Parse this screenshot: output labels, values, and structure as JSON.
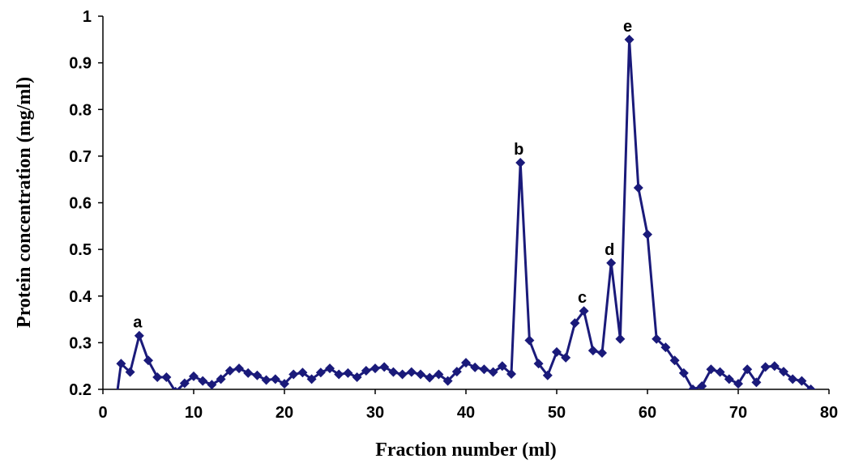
{
  "chart_data": {
    "type": "line",
    "title": "",
    "xlabel": "Fraction number (ml)",
    "ylabel": "Protein concentration (mg/ml)",
    "xlim": [
      0,
      80
    ],
    "ylim": [
      0.2,
      1.0
    ],
    "xticks": [
      "0",
      "10",
      "20",
      "30",
      "40",
      "50",
      "60",
      "70",
      "80"
    ],
    "yticks": [
      "0.2",
      "0.3",
      "0.4",
      "0.5",
      "0.6",
      "0.7",
      "0.8",
      "0.9",
      "1"
    ],
    "grid": false,
    "legend": "none",
    "colors": {
      "series": "#1a1a7a"
    },
    "series": [
      {
        "marker": "diamond",
        "x": [
          1,
          2,
          3,
          4,
          5,
          6,
          7,
          8,
          9,
          10,
          11,
          12,
          13,
          14,
          15,
          16,
          17,
          18,
          19,
          20,
          21,
          22,
          23,
          24,
          25,
          26,
          27,
          28,
          29,
          30,
          31,
          32,
          33,
          34,
          35,
          36,
          37,
          38,
          39,
          40,
          41,
          42,
          43,
          44,
          45,
          46,
          47,
          48,
          49,
          50,
          51,
          52,
          53,
          54,
          55,
          56,
          57,
          58,
          59,
          60,
          61,
          62,
          63,
          64,
          65,
          66,
          67,
          68,
          69,
          70,
          71,
          72,
          73,
          74,
          75,
          76,
          77,
          78
        ],
        "y": [
          0.11,
          0.255,
          0.237,
          0.315,
          0.262,
          0.226,
          0.226,
          0.195,
          0.213,
          0.228,
          0.218,
          0.21,
          0.222,
          0.24,
          0.245,
          0.235,
          0.23,
          0.22,
          0.222,
          0.212,
          0.232,
          0.236,
          0.222,
          0.236,
          0.245,
          0.232,
          0.235,
          0.226,
          0.24,
          0.245,
          0.248,
          0.237,
          0.232,
          0.237,
          0.232,
          0.225,
          0.232,
          0.218,
          0.238,
          0.257,
          0.247,
          0.243,
          0.237,
          0.25,
          0.233,
          0.686,
          0.305,
          0.255,
          0.23,
          0.28,
          0.268,
          0.342,
          0.368,
          0.283,
          0.278,
          0.471,
          0.308,
          0.95,
          0.632,
          0.532,
          0.308,
          0.29,
          0.262,
          0.235,
          0.2,
          0.207,
          0.243,
          0.237,
          0.222,
          0.212,
          0.243,
          0.215,
          0.248,
          0.25,
          0.238,
          0.222,
          0.218,
          0.2
        ]
      }
    ],
    "annotations": [
      {
        "text": "a",
        "x": 4,
        "y": 0.315
      },
      {
        "text": "b",
        "x": 46,
        "y": 0.686
      },
      {
        "text": "c",
        "x": 53,
        "y": 0.368
      },
      {
        "text": "d",
        "x": 56,
        "y": 0.471
      },
      {
        "text": "e",
        "x": 58,
        "y": 0.95
      }
    ]
  }
}
